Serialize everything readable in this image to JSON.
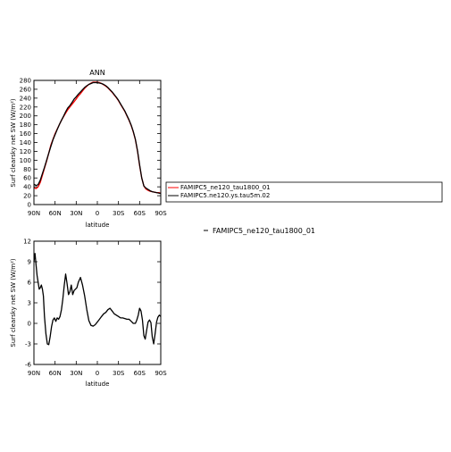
{
  "chart_data": [
    {
      "type": "line",
      "title": "ANN",
      "xlabel": "latitude",
      "ylabel": "Surf clearsky net SW (W/m²)",
      "xlim": [
        90,
        -90
      ],
      "ylim": [
        0,
        280
      ],
      "x_ticks": [
        90,
        60,
        30,
        0,
        -30,
        -60,
        -90
      ],
      "x_tick_labels": [
        "90N",
        "60N",
        "30N",
        "0",
        "30S",
        "60S",
        "90S"
      ],
      "y_ticks": [
        0,
        20,
        40,
        60,
        80,
        100,
        120,
        140,
        160,
        180,
        200,
        220,
        240,
        260,
        280
      ],
      "y_tick_labels": [
        "0",
        "20",
        "40",
        "60",
        "80",
        "100",
        "120",
        "140",
        "160",
        "180",
        "200",
        "220",
        "240",
        "260",
        "280"
      ],
      "legend_position": "right",
      "series": [
        {
          "name": "FAMIPC5_ne120_tau1800_01",
          "color": "#ff0000",
          "x": [
            90,
            87,
            84,
            81,
            78,
            75,
            72,
            69,
            66,
            63,
            60,
            57,
            54,
            51,
            48,
            45,
            42,
            39,
            36,
            33,
            30,
            27,
            24,
            21,
            18,
            15,
            12,
            9,
            6,
            3,
            0,
            -3,
            -6,
            -9,
            -12,
            -15,
            -18,
            -21,
            -24,
            -27,
            -30,
            -33,
            -36,
            -39,
            -42,
            -45,
            -48,
            -51,
            -54,
            -57,
            -60,
            -63,
            -66,
            -69,
            -72,
            -75,
            -78,
            -81,
            -84,
            -87,
            -90
          ],
          "y": [
            38,
            36,
            40,
            50,
            66,
            82,
            98,
            116,
            134,
            147,
            160,
            170,
            180,
            190,
            198,
            206,
            214,
            220,
            226,
            232,
            238,
            245,
            250,
            256,
            262,
            267,
            271,
            274,
            276,
            276,
            276,
            275,
            273,
            270,
            267,
            263,
            258,
            253,
            247,
            241,
            234,
            226,
            218,
            210,
            200,
            190,
            178,
            164,
            146,
            120,
            88,
            60,
            42,
            35,
            32,
            30,
            29,
            28,
            27,
            27,
            26
          ]
        },
        {
          "name": "FAMIPC5.ne120.ys.tau5m.02",
          "color": "#000000",
          "x": [
            90,
            87,
            84,
            81,
            78,
            75,
            72,
            69,
            66,
            63,
            60,
            57,
            54,
            51,
            48,
            45,
            42,
            39,
            36,
            33,
            30,
            27,
            24,
            21,
            18,
            15,
            12,
            9,
            6,
            3,
            0,
            -3,
            -6,
            -9,
            -12,
            -15,
            -18,
            -21,
            -24,
            -27,
            -30,
            -33,
            -36,
            -39,
            -42,
            -45,
            -48,
            -51,
            -54,
            -57,
            -60,
            -63,
            -66,
            -69,
            -72,
            -75,
            -78,
            -81,
            -84,
            -87,
            -90
          ],
          "y": [
            46,
            43,
            45,
            55,
            70,
            84,
            100,
            116,
            131,
            146,
            158,
            169,
            180,
            190,
            199,
            209,
            218,
            223,
            230,
            238,
            243,
            249,
            254,
            259,
            264,
            268,
            271,
            273,
            275,
            275,
            275,
            274,
            273,
            271,
            268,
            264,
            259,
            254,
            248,
            242,
            235,
            227,
            219,
            211,
            201,
            191,
            179,
            165,
            147,
            121,
            90,
            60,
            42,
            37,
            34,
            31,
            29,
            28,
            27,
            26,
            25
          ]
        }
      ]
    },
    {
      "type": "line",
      "title": "",
      "xlabel": "latitude",
      "ylabel": "Surf clearsky net SW (W/m²)",
      "xlim": [
        90,
        -90
      ],
      "ylim": [
        -6,
        12
      ],
      "x_ticks": [
        90,
        60,
        30,
        0,
        -30,
        -60,
        -90
      ],
      "x_tick_labels": [
        "90N",
        "60N",
        "30N",
        "0",
        "30S",
        "60S",
        "90S"
      ],
      "y_ticks": [
        -6,
        -3,
        0,
        3,
        6,
        9,
        12
      ],
      "y_tick_labels": [
        "-6",
        "-3",
        "0",
        "3",
        "6",
        "9",
        "12"
      ],
      "legend_position": "right",
      "series": [
        {
          "name": "FAMIPC5_ne120_tau1800_01",
          "color": "#000000",
          "x": [
            90,
            88.5,
            87,
            85.5,
            84,
            82.5,
            81,
            79.5,
            78,
            76.5,
            75,
            73,
            71,
            69,
            67,
            65,
            63,
            61,
            59,
            57,
            55,
            53,
            51,
            49,
            47,
            45,
            43,
            41,
            39,
            37,
            35,
            33,
            31,
            29,
            27,
            24,
            21,
            18,
            15,
            12,
            9,
            6,
            3,
            0,
            -3,
            -6,
            -9,
            -12,
            -15,
            -18,
            -21,
            -24,
            -27,
            -30,
            -33,
            -36,
            -39,
            -42,
            -45,
            -48,
            -51,
            -54,
            -56,
            -58,
            -60,
            -62,
            -64,
            -66,
            -68,
            -70,
            -72,
            -74,
            -76,
            -78,
            -80,
            -82,
            -84,
            -86,
            -88,
            -90
          ],
          "y": [
            9.0,
            10.2,
            8.5,
            7.0,
            6.0,
            5.0,
            5.2,
            5.6,
            5.0,
            4.0,
            1.0,
            -1.5,
            -3.0,
            -3.1,
            -2.0,
            -0.5,
            0.5,
            0.8,
            0.3,
            0.8,
            0.6,
            1.0,
            2.0,
            3.5,
            5.5,
            7.2,
            5.8,
            4.2,
            4.6,
            5.6,
            4.2,
            4.8,
            5.0,
            5.2,
            6.0,
            6.7,
            5.6,
            4.0,
            2.0,
            0.4,
            -0.3,
            -0.4,
            -0.2,
            0.2,
            0.6,
            1.0,
            1.4,
            1.6,
            2.0,
            2.2,
            1.8,
            1.4,
            1.2,
            1.0,
            0.8,
            0.8,
            0.7,
            0.6,
            0.6,
            0.3,
            0.0,
            0.0,
            0.5,
            1.2,
            2.2,
            1.8,
            0.5,
            -1.8,
            -2.3,
            -1.0,
            0.2,
            0.5,
            0.1,
            -2.0,
            -3.0,
            -1.5,
            0.2,
            0.9,
            1.2,
            1.0
          ]
        }
      ]
    }
  ],
  "legend_box": [
    {
      "label": "FAMIPC5_ne120_tau1800_01",
      "color": "#ff0000"
    },
    {
      "label": "FAMIPC5.ne120.ys.tau5m.02",
      "color": "#000000"
    }
  ],
  "diff_legend": {
    "label": "FAMIPC5_ne120_tau1800_01",
    "color": "#000000"
  }
}
